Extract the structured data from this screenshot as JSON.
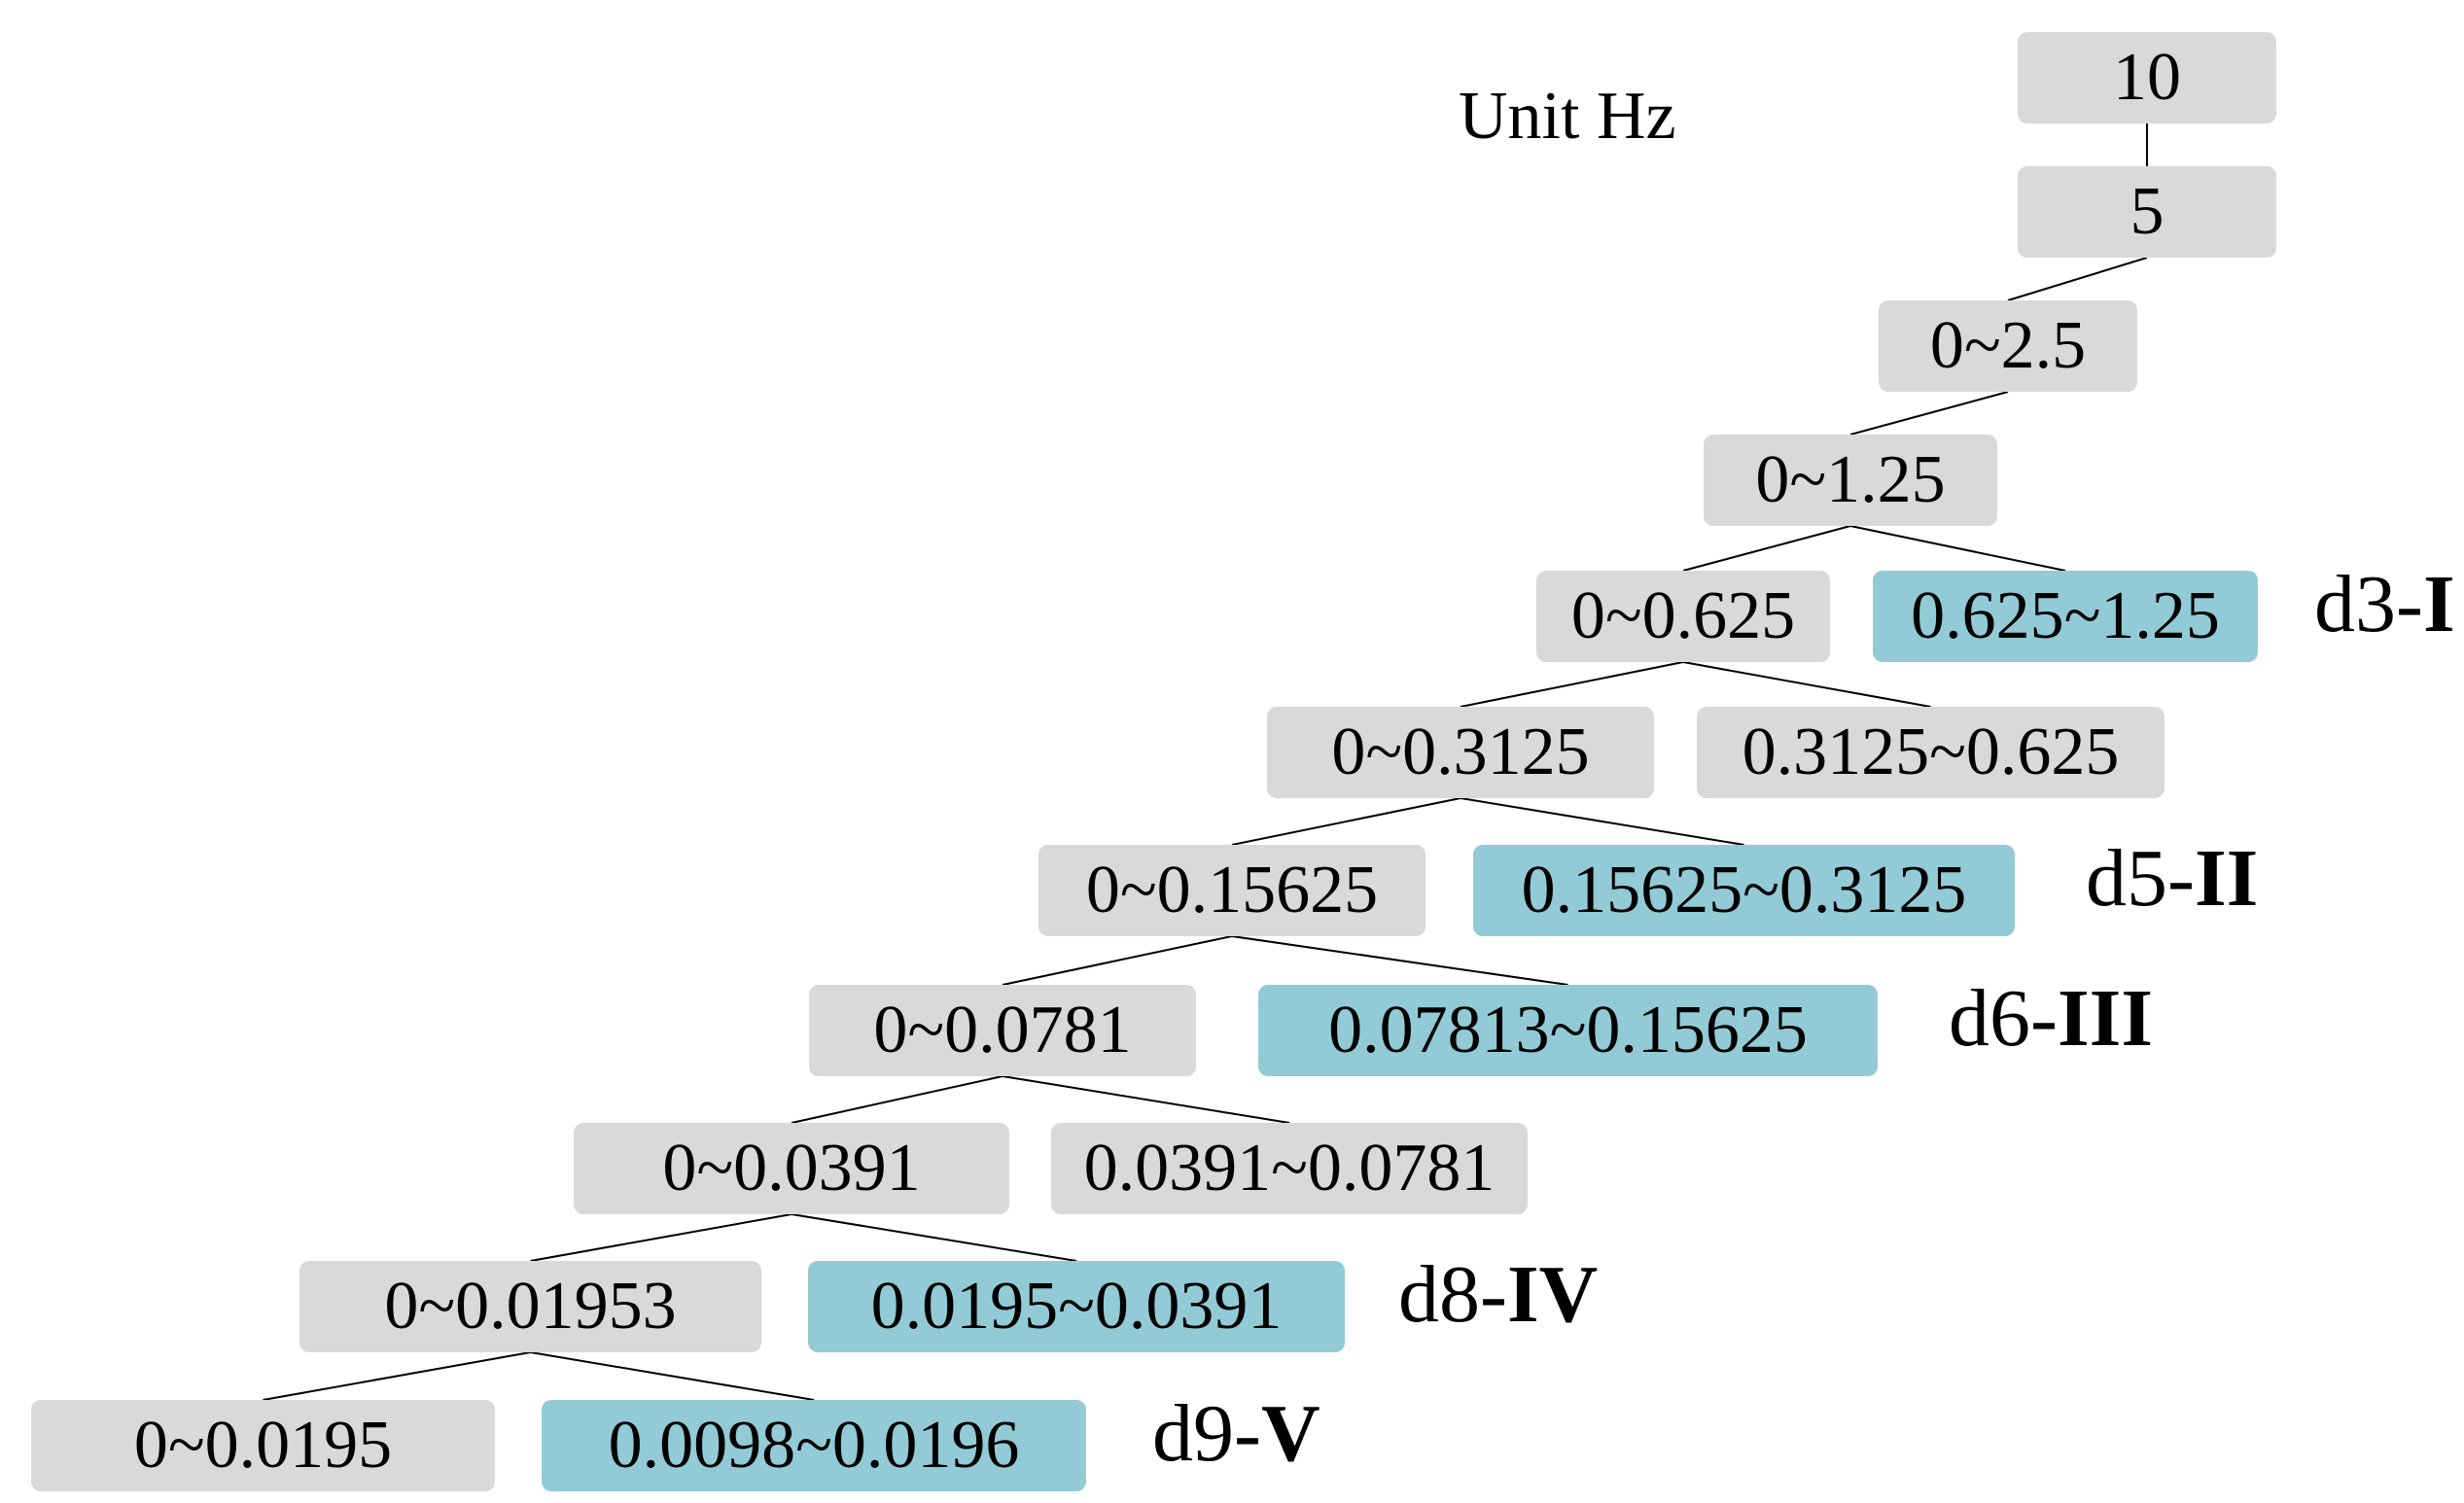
{
  "unit_label": "Unit Hz",
  "colors": {
    "node_grey": "#d9d9d9",
    "node_blue": "#92cbd5"
  },
  "nodes": [
    {
      "id": "n10",
      "label": "10",
      "style": "grey"
    },
    {
      "id": "n5",
      "label": "5",
      "style": "grey"
    },
    {
      "id": "n2_5",
      "label": "0~2.5",
      "style": "grey"
    },
    {
      "id": "n1_25",
      "label": "0~1.25",
      "style": "grey"
    },
    {
      "id": "n0_625",
      "label": "0~0.625",
      "style": "grey"
    },
    {
      "id": "d3",
      "label": "0.625~1.25",
      "style": "blue"
    },
    {
      "id": "n0_3125",
      "label": "0~0.3125",
      "style": "grey"
    },
    {
      "id": "h0_3125",
      "label": "0.3125~0.625",
      "style": "grey"
    },
    {
      "id": "n0_15625",
      "label": "0~0.15625",
      "style": "grey"
    },
    {
      "id": "d5",
      "label": "0.15625~0.3125",
      "style": "blue"
    },
    {
      "id": "n0_0781",
      "label": "0~0.0781",
      "style": "grey"
    },
    {
      "id": "d6",
      "label": "0.07813~0.15625",
      "style": "blue"
    },
    {
      "id": "n0_0391",
      "label": "0~0.0391",
      "style": "grey"
    },
    {
      "id": "h0_0391",
      "label": "0.0391~0.0781",
      "style": "grey"
    },
    {
      "id": "n0_01953",
      "label": "0~0.01953",
      "style": "grey"
    },
    {
      "id": "d8",
      "label": "0.0195~0.0391",
      "style": "blue"
    },
    {
      "id": "n0_0195",
      "label": "0~0.0195",
      "style": "grey"
    },
    {
      "id": "d9",
      "label": "0.0098~0.0196",
      "style": "blue"
    }
  ],
  "edges": [
    [
      "n10",
      "n5"
    ],
    [
      "n5",
      "n2_5"
    ],
    [
      "n2_5",
      "n1_25"
    ],
    [
      "n1_25",
      "n0_625"
    ],
    [
      "n1_25",
      "d3"
    ],
    [
      "n0_625",
      "n0_3125"
    ],
    [
      "n0_625",
      "h0_3125"
    ],
    [
      "n0_3125",
      "n0_15625"
    ],
    [
      "n0_3125",
      "d5"
    ],
    [
      "n0_15625",
      "n0_0781"
    ],
    [
      "n0_15625",
      "d6"
    ],
    [
      "n0_0781",
      "n0_0391"
    ],
    [
      "n0_0781",
      "h0_0391"
    ],
    [
      "n0_0391",
      "n0_01953"
    ],
    [
      "n0_0391",
      "d8"
    ],
    [
      "n0_01953",
      "n0_0195"
    ],
    [
      "n0_01953",
      "d9"
    ]
  ],
  "level_labels": [
    {
      "id": "d3",
      "prefix": "d3-",
      "roman": "I"
    },
    {
      "id": "d5",
      "prefix": "d5-",
      "roman": "II"
    },
    {
      "id": "d6",
      "prefix": "d6-",
      "roman": "III"
    },
    {
      "id": "d8",
      "prefix": "d8-",
      "roman": "IV"
    },
    {
      "id": "d9",
      "prefix": "d9-",
      "roman": "V"
    }
  ]
}
